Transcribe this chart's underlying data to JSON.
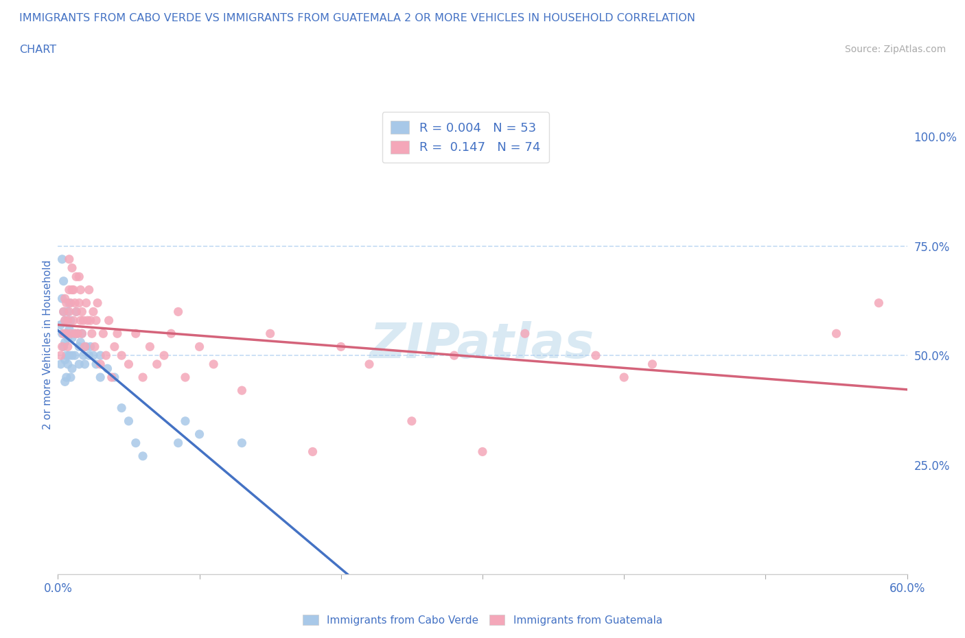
{
  "title_line1": "IMMIGRANTS FROM CABO VERDE VS IMMIGRANTS FROM GUATEMALA 2 OR MORE VEHICLES IN HOUSEHOLD CORRELATION",
  "title_line2": "CHART",
  "source_text": "Source: ZipAtlas.com",
  "ylabel": "2 or more Vehicles in Household",
  "legend_cabo_label": "Immigrants from Cabo Verde",
  "legend_guatemala_label": "Immigrants from Guatemala",
  "cabo_R": "0.004",
  "cabo_N": "53",
  "guatemala_R": "0.147",
  "guatemala_N": "74",
  "cabo_color": "#a8c8e8",
  "cabo_line_color": "#4472c4",
  "guatemala_color": "#f4a7b9",
  "guatemala_line_color": "#d4637a",
  "watermark_color": "#d0e4f0",
  "xmin": 0.0,
  "xmax": 0.6,
  "ymin": 0.0,
  "ymax": 1.05,
  "cabo_x": [
    0.002,
    0.002,
    0.003,
    0.003,
    0.003,
    0.004,
    0.004,
    0.004,
    0.005,
    0.005,
    0.005,
    0.005,
    0.006,
    0.006,
    0.006,
    0.007,
    0.007,
    0.007,
    0.008,
    0.008,
    0.008,
    0.009,
    0.009,
    0.01,
    0.01,
    0.01,
    0.012,
    0.012,
    0.013,
    0.014,
    0.015,
    0.015,
    0.016,
    0.017,
    0.018,
    0.019,
    0.02,
    0.022,
    0.023,
    0.025,
    0.027,
    0.03,
    0.03,
    0.035,
    0.04,
    0.045,
    0.05,
    0.055,
    0.06,
    0.085,
    0.09,
    0.1,
    0.13
  ],
  "cabo_y": [
    0.57,
    0.48,
    0.63,
    0.72,
    0.55,
    0.67,
    0.6,
    0.52,
    0.58,
    0.53,
    0.49,
    0.44,
    0.55,
    0.5,
    0.45,
    0.6,
    0.54,
    0.48,
    0.62,
    0.56,
    0.5,
    0.58,
    0.45,
    0.54,
    0.5,
    0.47,
    0.55,
    0.5,
    0.6,
    0.55,
    0.52,
    0.48,
    0.53,
    0.55,
    0.5,
    0.48,
    0.52,
    0.5,
    0.52,
    0.5,
    0.48,
    0.5,
    0.45,
    0.47,
    0.45,
    0.38,
    0.35,
    0.3,
    0.27,
    0.3,
    0.35,
    0.32,
    0.3
  ],
  "guatemala_x": [
    0.002,
    0.003,
    0.004,
    0.004,
    0.005,
    0.005,
    0.006,
    0.006,
    0.007,
    0.007,
    0.008,
    0.008,
    0.008,
    0.009,
    0.009,
    0.01,
    0.01,
    0.011,
    0.011,
    0.012,
    0.012,
    0.013,
    0.013,
    0.014,
    0.015,
    0.015,
    0.016,
    0.016,
    0.017,
    0.017,
    0.018,
    0.019,
    0.02,
    0.021,
    0.022,
    0.023,
    0.024,
    0.025,
    0.026,
    0.027,
    0.028,
    0.03,
    0.032,
    0.034,
    0.036,
    0.038,
    0.04,
    0.042,
    0.045,
    0.05,
    0.055,
    0.06,
    0.065,
    0.07,
    0.075,
    0.08,
    0.085,
    0.09,
    0.1,
    0.11,
    0.13,
    0.15,
    0.18,
    0.2,
    0.22,
    0.25,
    0.28,
    0.3,
    0.33,
    0.38,
    0.4,
    0.42,
    0.55,
    0.58
  ],
  "guatemala_y": [
    0.5,
    0.52,
    0.55,
    0.6,
    0.58,
    0.63,
    0.55,
    0.62,
    0.52,
    0.58,
    0.65,
    0.72,
    0.6,
    0.55,
    0.62,
    0.65,
    0.7,
    0.58,
    0.65,
    0.62,
    0.55,
    0.6,
    0.68,
    0.55,
    0.62,
    0.68,
    0.58,
    0.65,
    0.6,
    0.55,
    0.58,
    0.52,
    0.62,
    0.58,
    0.65,
    0.58,
    0.55,
    0.6,
    0.52,
    0.58,
    0.62,
    0.48,
    0.55,
    0.5,
    0.58,
    0.45,
    0.52,
    0.55,
    0.5,
    0.48,
    0.55,
    0.45,
    0.52,
    0.48,
    0.5,
    0.55,
    0.6,
    0.45,
    0.52,
    0.48,
    0.42,
    0.55,
    0.28,
    0.52,
    0.48,
    0.35,
    0.5,
    0.28,
    0.55,
    0.5,
    0.45,
    0.48,
    0.55,
    0.62
  ]
}
